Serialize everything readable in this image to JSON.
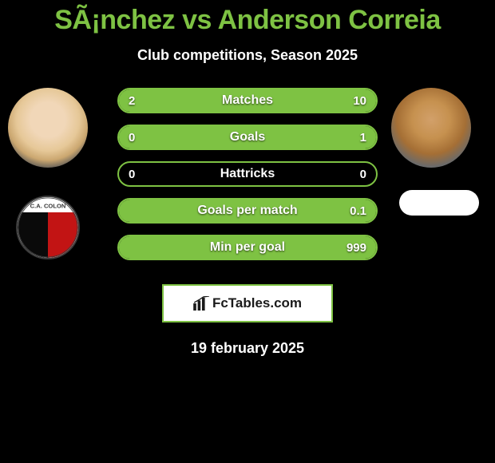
{
  "title": "SÃ¡nchez vs Anderson Correia",
  "subtitle": "Club competitions, Season 2025",
  "date": "19 february 2025",
  "brand": "FcTables.com",
  "colors": {
    "accent": "#7ec243",
    "bg": "#000000",
    "text": "#ffffff"
  },
  "stats": [
    {
      "label": "Matches",
      "left_val": "2",
      "right_val": "10",
      "left_num": 2,
      "right_num": 10,
      "fill": "proportional"
    },
    {
      "label": "Goals",
      "left_val": "0",
      "right_val": "1",
      "left_num": 0,
      "right_num": 1,
      "fill": "right_full"
    },
    {
      "label": "Hattricks",
      "left_val": "0",
      "right_val": "0",
      "left_num": 0,
      "right_num": 0,
      "fill": "none"
    },
    {
      "label": "Goals per match",
      "left_val": "",
      "right_val": "0.1",
      "left_num": 0,
      "right_num": 0.1,
      "fill": "right_full"
    },
    {
      "label": "Min per goal",
      "left_val": "",
      "right_val": "999",
      "left_num": 0,
      "right_num": 999,
      "fill": "right_full"
    }
  ],
  "club_left": {
    "name": "C.A. Colón",
    "colors": [
      "#0a0a0a",
      "#c21414"
    ]
  }
}
